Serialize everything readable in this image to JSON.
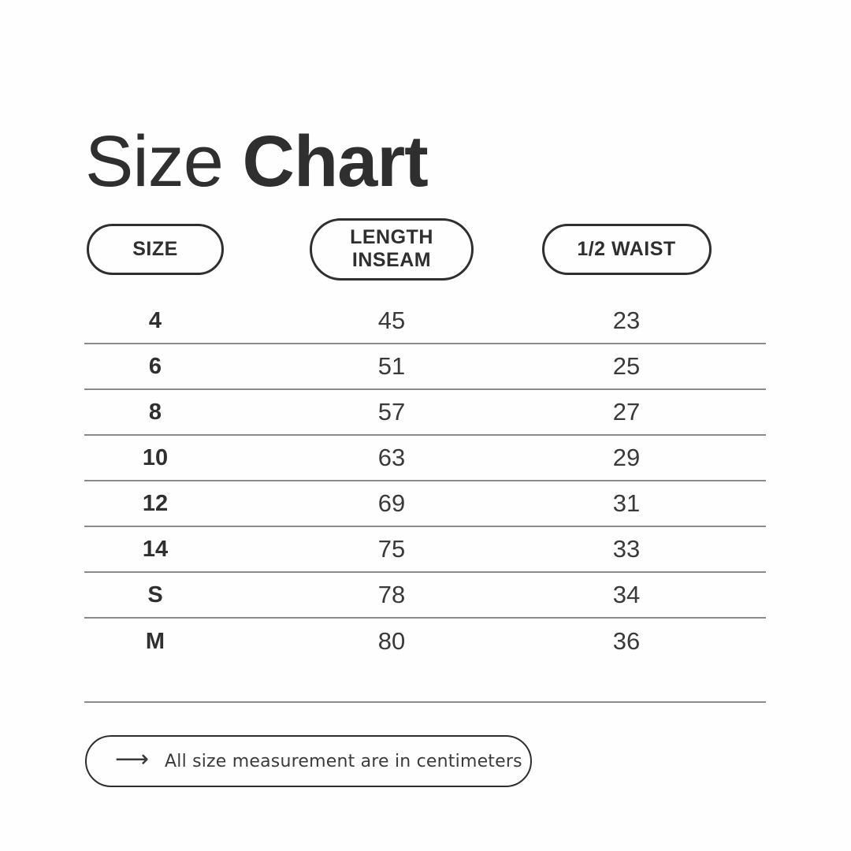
{
  "page": {
    "background": "#fdfefd",
    "ink_color": "#2f2f2f",
    "line_color": "#8b8b8b"
  },
  "title": {
    "regular": "Size",
    "bold": "Chart"
  },
  "table": {
    "columns": [
      {
        "label": "SIZE"
      },
      {
        "label": "LENGTH",
        "label2": "INSEAM"
      },
      {
        "label": "1/2 WAIST"
      }
    ],
    "rows": [
      {
        "size": "4",
        "length_inseam": "45",
        "half_waist": "23"
      },
      {
        "size": "6",
        "length_inseam": "51",
        "half_waist": "25"
      },
      {
        "size": "8",
        "length_inseam": "57",
        "half_waist": "27"
      },
      {
        "size": "10",
        "length_inseam": "63",
        "half_waist": "29"
      },
      {
        "size": "12",
        "length_inseam": "69",
        "half_waist": "31"
      },
      {
        "size": "14",
        "length_inseam": "75",
        "half_waist": "33"
      },
      {
        "size": "S",
        "length_inseam": "78",
        "half_waist": "34"
      },
      {
        "size": "M",
        "length_inseam": "80",
        "half_waist": "36"
      }
    ]
  },
  "footer": {
    "arrow_icon": "long-right-arrow",
    "arrow_glyph": "⟶",
    "note": "All size measurement are in centimeters"
  },
  "chart_data": {
    "type": "table",
    "title": "Size Chart",
    "columns": [
      "SIZE",
      "LENGTH INSEAM",
      "1/2 WAIST"
    ],
    "rows": [
      [
        "4",
        45,
        23
      ],
      [
        "6",
        51,
        25
      ],
      [
        "8",
        57,
        27
      ],
      [
        "10",
        63,
        29
      ],
      [
        "12",
        69,
        31
      ],
      [
        "14",
        75,
        33
      ],
      [
        "S",
        78,
        34
      ],
      [
        "M",
        80,
        36
      ]
    ],
    "units": "centimeters",
    "note": "All size measurement are in centimeters"
  }
}
